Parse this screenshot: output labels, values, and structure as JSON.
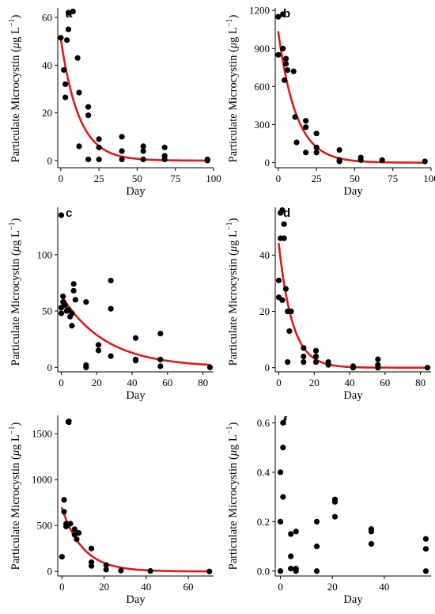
{
  "chart_data": [
    {
      "panel": "a",
      "type": "scatter",
      "xlabel": "Day",
      "ylabel_parts": [
        "Particulate Microcystin (",
        "μ",
        "g L",
        "−1",
        ")"
      ],
      "xlim": [
        -2,
        100
      ],
      "ylim": [
        -3,
        64
      ],
      "xticks": [
        0,
        25,
        50,
        75,
        100
      ],
      "yticks": [
        0,
        20,
        40,
        60
      ],
      "points": [
        [
          0,
          51.5
        ],
        [
          2,
          38
        ],
        [
          3,
          32
        ],
        [
          3,
          26.5
        ],
        [
          4,
          50.5
        ],
        [
          5,
          55
        ],
        [
          5,
          62
        ],
        [
          8,
          62.5
        ],
        [
          11,
          43
        ],
        [
          12,
          28.5
        ],
        [
          12,
          6
        ],
        [
          18,
          22.5
        ],
        [
          18,
          19
        ],
        [
          18,
          0.5
        ],
        [
          25,
          9
        ],
        [
          25,
          5.5
        ],
        [
          25,
          0.5
        ],
        [
          40,
          10
        ],
        [
          40,
          4
        ],
        [
          40,
          0.5
        ],
        [
          54,
          6
        ],
        [
          54,
          4
        ],
        [
          54,
          0.5
        ],
        [
          68,
          5.5
        ],
        [
          68,
          2
        ],
        [
          68,
          0.5
        ],
        [
          96,
          0.5
        ],
        [
          96,
          0
        ]
      ],
      "fit": {
        "a": 51,
        "k": 0.085,
        "x0": 0,
        "x1": 96
      }
    },
    {
      "panel": "b",
      "type": "scatter",
      "xlabel": "Day",
      "ylabel_parts": [
        "Particulate Microcystin (",
        "μ",
        "g L",
        "−1",
        ")"
      ],
      "xlim": [
        -2,
        100
      ],
      "ylim": [
        -40,
        1220
      ],
      "xticks": [
        0,
        25,
        50,
        75,
        100
      ],
      "yticks": [
        0,
        300,
        600,
        900,
        1200
      ],
      "points": [
        [
          0,
          850
        ],
        [
          0,
          1150
        ],
        [
          3,
          1170
        ],
        [
          3,
          900
        ],
        [
          4,
          650
        ],
        [
          5,
          780
        ],
        [
          5,
          820
        ],
        [
          6,
          730
        ],
        [
          10,
          720
        ],
        [
          11,
          360
        ],
        [
          12,
          160
        ],
        [
          18,
          330
        ],
        [
          18,
          280
        ],
        [
          18,
          80
        ],
        [
          25,
          230
        ],
        [
          25,
          120
        ],
        [
          25,
          80
        ],
        [
          40,
          100
        ],
        [
          40,
          20
        ],
        [
          40,
          10
        ],
        [
          54,
          40
        ],
        [
          54,
          20
        ],
        [
          68,
          20
        ],
        [
          96,
          10
        ]
      ],
      "fit": {
        "a": 1030,
        "k": 0.085,
        "x0": 0,
        "x1": 96
      }
    },
    {
      "panel": "c",
      "type": "scatter",
      "xlabel": "Day",
      "ylabel_parts": [
        "Particulate Microcystin (",
        "μ",
        "g L",
        "−1",
        ")"
      ],
      "xlim": [
        -2,
        86
      ],
      "ylim": [
        -4,
        142
      ],
      "xticks": [
        0,
        20,
        40,
        60,
        80
      ],
      "yticks": [
        0,
        50,
        100
      ],
      "points": [
        [
          0,
          135
        ],
        [
          0,
          53
        ],
        [
          0,
          48
        ],
        [
          1,
          58
        ],
        [
          1,
          63
        ],
        [
          2,
          55
        ],
        [
          3,
          50
        ],
        [
          4,
          51
        ],
        [
          5,
          45
        ],
        [
          6,
          37
        ],
        [
          6,
          48
        ],
        [
          7,
          68
        ],
        [
          7,
          74
        ],
        [
          8,
          60
        ],
        [
          14,
          58
        ],
        [
          14,
          2
        ],
        [
          14,
          0
        ],
        [
          21,
          20
        ],
        [
          21,
          15
        ],
        [
          28,
          77
        ],
        [
          28,
          52
        ],
        [
          28,
          10
        ],
        [
          42,
          26
        ],
        [
          42,
          7
        ],
        [
          42,
          6
        ],
        [
          56,
          30
        ],
        [
          56,
          7
        ],
        [
          56,
          1
        ],
        [
          84,
          0
        ]
      ],
      "fit": {
        "a": 64,
        "k": 0.04,
        "x0": 0,
        "x1": 84
      }
    },
    {
      "panel": "d",
      "type": "scatter",
      "xlabel": "Day",
      "ylabel_parts": [
        "Particulate Microcystin (",
        "μ",
        "g L",
        "−1",
        ")"
      ],
      "xlim": [
        -2,
        86
      ],
      "ylim": [
        -1.5,
        57
      ],
      "xticks": [
        0,
        20,
        40,
        60,
        80
      ],
      "yticks": [
        0,
        20,
        40
      ],
      "points": [
        [
          0,
          25
        ],
        [
          0,
          31
        ],
        [
          1,
          55
        ],
        [
          1,
          46
        ],
        [
          2,
          56
        ],
        [
          2,
          24
        ],
        [
          3,
          46
        ],
        [
          3,
          51
        ],
        [
          4,
          28
        ],
        [
          5,
          20
        ],
        [
          5,
          2
        ],
        [
          6,
          13
        ],
        [
          7,
          20
        ],
        [
          14,
          7
        ],
        [
          14,
          4
        ],
        [
          14,
          2
        ],
        [
          21,
          6
        ],
        [
          21,
          4
        ],
        [
          21,
          2
        ],
        [
          28,
          2
        ],
        [
          28,
          1
        ],
        [
          42,
          0.5
        ],
        [
          42,
          0
        ],
        [
          56,
          3
        ],
        [
          56,
          1
        ],
        [
          56,
          0
        ],
        [
          84,
          0
        ]
      ],
      "fit": {
        "a": 44,
        "k": 0.13,
        "x0": 0,
        "x1": 84
      }
    },
    {
      "panel": "e",
      "type": "scatter",
      "xlabel": "Day",
      "ylabel_parts": [
        "Particulate Microcystin (",
        "μ",
        "g L",
        "−1",
        ")"
      ],
      "xlim": [
        -2,
        72
      ],
      "ylim": [
        -50,
        1700
      ],
      "xticks": [
        0,
        20,
        40,
        60
      ],
      "yticks": [
        0,
        500,
        1000,
        1500
      ],
      "points": [
        [
          0,
          160
        ],
        [
          1,
          780
        ],
        [
          1,
          650
        ],
        [
          2,
          520
        ],
        [
          2,
          490
        ],
        [
          3,
          1630
        ],
        [
          4,
          520
        ],
        [
          6,
          460
        ],
        [
          6,
          400
        ],
        [
          7,
          350
        ],
        [
          8,
          420
        ],
        [
          14,
          250
        ],
        [
          14,
          100
        ],
        [
          14,
          60
        ],
        [
          21,
          70
        ],
        [
          21,
          20
        ],
        [
          28,
          10
        ],
        [
          42,
          5
        ],
        [
          70,
          0
        ]
      ],
      "fit": {
        "a": 690,
        "k": 0.1,
        "x0": 0,
        "x1": 70
      }
    },
    {
      "panel": "f",
      "type": "scatter",
      "xlabel": "Day",
      "ylabel_parts": [
        "Particulate Microcystin (",
        "μ",
        "g L",
        "−1",
        ")"
      ],
      "xlim": [
        -2,
        58
      ],
      "ylim": [
        -0.02,
        0.63
      ],
      "xticks": [
        0,
        20,
        40
      ],
      "yticks": [
        0,
        0.2,
        0.4,
        0.6
      ],
      "ytick_labels": [
        "0.0",
        "0.2",
        "0.4",
        "0.6"
      ],
      "points": [
        [
          0,
          0.2
        ],
        [
          0,
          0.4
        ],
        [
          0,
          0
        ],
        [
          1,
          0.6
        ],
        [
          1,
          0.5
        ],
        [
          1,
          0.3
        ],
        [
          4,
          0.15
        ],
        [
          4,
          0.06
        ],
        [
          4,
          0.01
        ],
        [
          6,
          0.16
        ],
        [
          6,
          0.01
        ],
        [
          6,
          0
        ],
        [
          14,
          0.2
        ],
        [
          14,
          0.1
        ],
        [
          14,
          0
        ],
        [
          21,
          0.29
        ],
        [
          21,
          0.28
        ],
        [
          21,
          0.22
        ],
        [
          35,
          0.17
        ],
        [
          35,
          0.16
        ],
        [
          35,
          0.11
        ],
        [
          56,
          0.13
        ],
        [
          56,
          0.09
        ],
        [
          56,
          0
        ]
      ],
      "fit": null
    }
  ],
  "colors": {
    "points": "#000000",
    "fit": "#dd1c1a"
  }
}
